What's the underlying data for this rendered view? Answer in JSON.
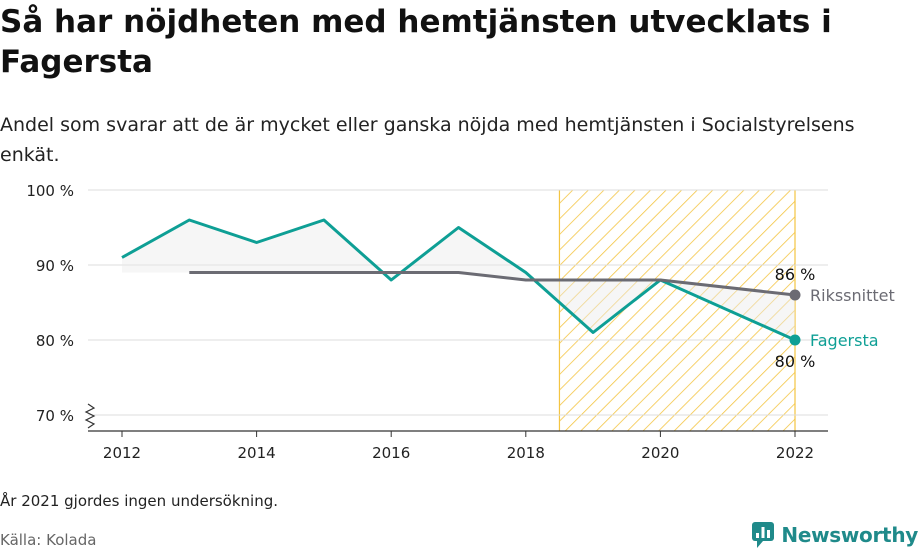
{
  "title": "Så har nöjdheten med hemtjänsten utvecklats i Fagersta",
  "subtitle": "Andel som svarar att de är mycket eller ganska nöjda med hemtjänsten i Socialstyrelsens enkät.",
  "note": "År 2021 gjordes ingen undersökning.",
  "source": "Källa: Kolada",
  "brand": {
    "name": "Newsworthy",
    "icon": "newsworthy-logo-icon",
    "color": "#1f8a8a"
  },
  "chart_data": {
    "type": "line",
    "x_ticks": [
      "2012",
      "2014",
      "2016",
      "2018",
      "2020",
      "2022"
    ],
    "y_ticks": [
      "100 %",
      "90 %",
      "80 %",
      "70 %"
    ],
    "y_tick_values": [
      100,
      90,
      80,
      70
    ],
    "xlim": [
      2012,
      2022
    ],
    "ylim": [
      70,
      100
    ],
    "grid": true,
    "axis_break": true,
    "highlight_range": [
      2018.5,
      2022
    ],
    "series": [
      {
        "name": "Fagersta",
        "color": "#0e9f95",
        "x": [
          2012,
          2013,
          2014,
          2015,
          2016,
          2017,
          2018,
          2019,
          2020,
          2022
        ],
        "y": [
          91,
          96,
          93,
          96,
          88,
          95,
          89,
          81,
          88,
          80
        ],
        "end_label": "80 %"
      },
      {
        "name": "Rikssnittet",
        "color": "#6b6b73",
        "x": [
          2013,
          2014,
          2015,
          2016,
          2017,
          2018,
          2019,
          2020,
          2022
        ],
        "y": [
          89,
          89,
          89,
          89,
          89,
          88,
          88,
          88,
          86
        ],
        "end_label": "86 %"
      }
    ]
  }
}
